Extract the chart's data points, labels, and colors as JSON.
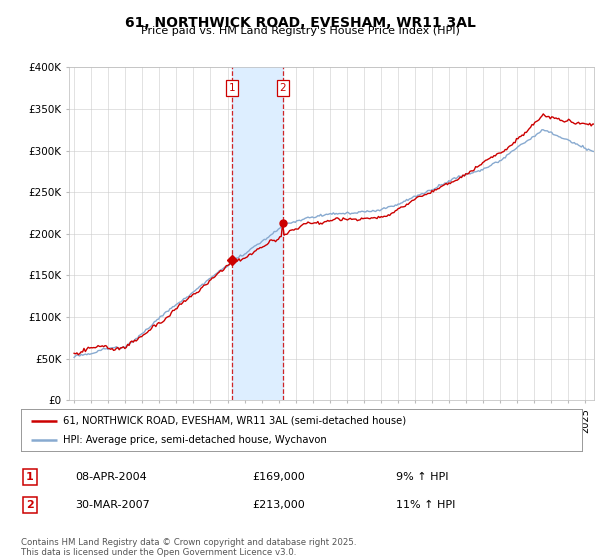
{
  "title": "61, NORTHWICK ROAD, EVESHAM, WR11 3AL",
  "subtitle": "Price paid vs. HM Land Registry's House Price Index (HPI)",
  "ylim": [
    0,
    400000
  ],
  "yticks": [
    0,
    50000,
    100000,
    150000,
    200000,
    250000,
    300000,
    350000,
    400000
  ],
  "ytick_labels": [
    "£0",
    "£50K",
    "£100K",
    "£150K",
    "£200K",
    "£250K",
    "£300K",
    "£350K",
    "£400K"
  ],
  "sale1_date": 2004.27,
  "sale1_price": 169000,
  "sale1_label": "1",
  "sale1_text": "08-APR-2004",
  "sale1_pct": "9% ↑ HPI",
  "sale2_date": 2007.24,
  "sale2_price": 213000,
  "sale2_label": "2",
  "sale2_text": "30-MAR-2007",
  "sale2_pct": "11% ↑ HPI",
  "line1_color": "#cc0000",
  "line2_color": "#88aad0",
  "highlight_color": "#ddeeff",
  "legend_label1": "61, NORTHWICK ROAD, EVESHAM, WR11 3AL (semi-detached house)",
  "legend_label2": "HPI: Average price, semi-detached house, Wychavon",
  "footer": "Contains HM Land Registry data © Crown copyright and database right 2025.\nThis data is licensed under the Open Government Licence v3.0.",
  "background_color": "#ffffff",
  "grid_color": "#cccccc",
  "xlim_min": 1995.0,
  "xlim_max": 2025.5
}
